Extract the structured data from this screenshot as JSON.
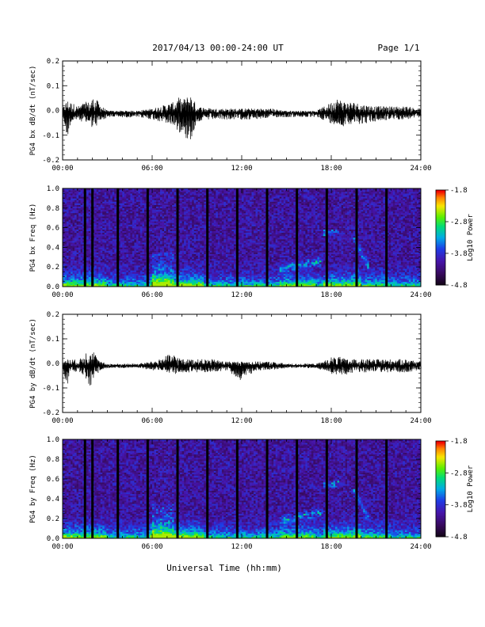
{
  "header": {
    "title": "2017/04/13  00:00-24:00 UT",
    "page": "Page 1/1"
  },
  "xaxis_title": "Universal Time (hh:mm)",
  "colors": {
    "trace": "#000000",
    "spectrogram_bg": "#1a0a3a"
  },
  "chart_data": [
    {
      "type": "line",
      "ylabel": "PG4 bx dB/dt (nT/sec)",
      "xlim": [
        "00:00",
        "24:00"
      ],
      "ylim": [
        -0.2,
        0.2
      ],
      "xticks": [
        "00:00",
        "06:00",
        "12:00",
        "18:00",
        "24:00"
      ],
      "yticks": [
        "-0.2",
        "-0.1",
        "0.0",
        "0.1",
        "0.2"
      ],
      "series": [
        {
          "x_hours": [
            0,
            0.3,
            0.5,
            0.8,
            1.0,
            1.3,
            1.5,
            1.8,
            2.0,
            2.3,
            2.5,
            3,
            4,
            5,
            6,
            6.5,
            7,
            7.5,
            7.8,
            8,
            8.3,
            8.5,
            8.8,
            9,
            10,
            11,
            12,
            13,
            14,
            15,
            16,
            17,
            17.8,
            18,
            18.3,
            18.6,
            19,
            19.5,
            20,
            21,
            22,
            23,
            24
          ],
          "y_range": [
            [
              -0.02,
              0.02
            ],
            [
              -0.12,
              0.06
            ],
            [
              -0.05,
              0.05
            ],
            [
              -0.04,
              0.04
            ],
            [
              -0.03,
              0.03
            ],
            [
              -0.04,
              0.04
            ],
            [
              -0.05,
              0.05
            ],
            [
              -0.05,
              0.05
            ],
            [
              -0.07,
              0.07
            ],
            [
              -0.06,
              0.06
            ],
            [
              -0.04,
              0.04
            ],
            [
              -0.02,
              0.01
            ],
            [
              -0.02,
              0.01
            ],
            [
              -0.02,
              0.01
            ],
            [
              -0.03,
              0.02
            ],
            [
              -0.04,
              0.03
            ],
            [
              -0.05,
              0.04
            ],
            [
              -0.06,
              0.05
            ],
            [
              -0.1,
              0.07
            ],
            [
              -0.07,
              0.06
            ],
            [
              -0.12,
              0.07
            ],
            [
              -0.14,
              0.09
            ],
            [
              -0.08,
              0.06
            ],
            [
              -0.04,
              0.03
            ],
            [
              -0.03,
              0.02
            ],
            [
              -0.03,
              0.02
            ],
            [
              -0.03,
              0.02
            ],
            [
              -0.03,
              0.02
            ],
            [
              -0.02,
              0.02
            ],
            [
              -0.02,
              0.01
            ],
            [
              -0.02,
              0.01
            ],
            [
              -0.02,
              0.01
            ],
            [
              -0.04,
              0.04
            ],
            [
              -0.05,
              0.05
            ],
            [
              -0.05,
              0.07
            ],
            [
              -0.07,
              0.06
            ],
            [
              -0.05,
              0.05
            ],
            [
              -0.05,
              0.05
            ],
            [
              -0.05,
              0.04
            ],
            [
              -0.04,
              0.03
            ],
            [
              -0.03,
              0.03
            ],
            [
              -0.03,
              0.03
            ],
            [
              -0.02,
              0.02
            ]
          ]
        }
      ]
    },
    {
      "type": "heatmap",
      "ylabel": "PG4 bx Freq (Hz)",
      "colorbar_label": "Log10 Power",
      "xlim": [
        "00:00",
        "24:00"
      ],
      "ylim": [
        0,
        1.0
      ],
      "clim": [
        -4.8,
        -1.8
      ],
      "xticks": [
        "00:00",
        "06:00",
        "12:00",
        "18:00",
        "24:00"
      ],
      "yticks": [
        "0.0",
        "0.2",
        "0.4",
        "0.6",
        "0.8",
        "1.0"
      ],
      "cticks": [
        "-4.8",
        "-3.8",
        "-2.8",
        "-1.8"
      ],
      "data_gaps_hours": [
        1.5,
        2.0,
        3.7,
        5.7,
        7.7,
        9.7,
        11.7,
        13.7,
        15.7,
        17.7,
        19.7,
        21.7
      ]
    },
    {
      "type": "line",
      "ylabel": "PG4 by dB/dt (nT/sec)",
      "xlim": [
        "00:00",
        "24:00"
      ],
      "ylim": [
        -0.2,
        0.2
      ],
      "xticks": [
        "00:00",
        "06:00",
        "12:00",
        "18:00",
        "24:00"
      ],
      "yticks": [
        "-0.2",
        "-0.1",
        "0.0",
        "0.1",
        "0.2"
      ],
      "series": [
        {
          "x_hours": [
            0,
            0.3,
            0.5,
            0.8,
            1.0,
            1.3,
            1.5,
            1.8,
            2.0,
            2.3,
            2.5,
            3,
            4,
            5,
            6,
            6.5,
            7,
            7.5,
            7.8,
            8,
            8.3,
            8.5,
            8.8,
            9,
            10,
            11,
            12,
            13,
            14,
            15,
            16,
            17,
            17.8,
            18,
            18.3,
            18.6,
            19,
            19.5,
            20,
            21,
            22,
            23,
            24
          ],
          "y_range": [
            [
              -0.02,
              0.02
            ],
            [
              -0.09,
              0.03
            ],
            [
              -0.03,
              0.03
            ],
            [
              -0.03,
              0.03
            ],
            [
              -0.02,
              0.02
            ],
            [
              -0.04,
              0.04
            ],
            [
              -0.05,
              0.06
            ],
            [
              -0.11,
              0.08
            ],
            [
              -0.06,
              0.08
            ],
            [
              -0.04,
              0.04
            ],
            [
              -0.02,
              0.02
            ],
            [
              -0.01,
              0.01
            ],
            [
              -0.01,
              0.01
            ],
            [
              -0.01,
              0.01
            ],
            [
              -0.02,
              0.02
            ],
            [
              -0.03,
              0.03
            ],
            [
              -0.03,
              0.05
            ],
            [
              -0.04,
              0.05
            ],
            [
              -0.03,
              0.04
            ],
            [
              -0.03,
              0.03
            ],
            [
              -0.03,
              0.03
            ],
            [
              -0.03,
              0.03
            ],
            [
              -0.02,
              0.03
            ],
            [
              -0.03,
              0.03
            ],
            [
              -0.03,
              0.03
            ],
            [
              -0.02,
              0.02
            ],
            [
              -0.07,
              0.02
            ],
            [
              -0.02,
              0.02
            ],
            [
              -0.02,
              0.02
            ],
            [
              -0.01,
              0.01
            ],
            [
              -0.01,
              0.01
            ],
            [
              -0.01,
              0.01
            ],
            [
              -0.03,
              0.03
            ],
            [
              -0.04,
              0.04
            ],
            [
              -0.04,
              0.04
            ],
            [
              -0.04,
              0.04
            ],
            [
              -0.04,
              0.03
            ],
            [
              -0.03,
              0.03
            ],
            [
              -0.03,
              0.03
            ],
            [
              -0.03,
              0.03
            ],
            [
              -0.03,
              0.03
            ],
            [
              -0.03,
              0.03
            ],
            [
              -0.02,
              0.02
            ]
          ]
        }
      ]
    },
    {
      "type": "heatmap",
      "ylabel": "PG4 by Freq (Hz)",
      "colorbar_label": "Log10 Power",
      "xlim": [
        "00:00",
        "24:00"
      ],
      "ylim": [
        0,
        1.0
      ],
      "clim": [
        -4.8,
        -1.8
      ],
      "xticks": [
        "00:00",
        "06:00",
        "12:00",
        "18:00",
        "24:00"
      ],
      "yticks": [
        "0.0",
        "0.2",
        "0.4",
        "0.6",
        "0.8",
        "1.0"
      ],
      "cticks": [
        "-4.8",
        "-3.8",
        "-2.8",
        "-1.8"
      ],
      "data_gaps_hours": [
        1.5,
        2.0,
        3.7,
        5.7,
        7.7,
        9.7,
        11.7,
        13.7,
        15.7,
        17.7,
        19.7,
        21.7
      ]
    }
  ]
}
